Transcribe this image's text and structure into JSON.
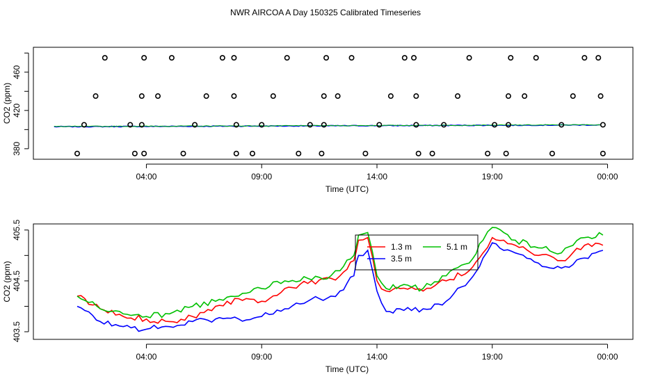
{
  "title": "NWR AIRCOA A  Day 150325  Calibrated Timeseries",
  "chart_data": [
    {
      "type": "scatter",
      "xlabel": "Time (UTC)",
      "ylabel": "CO2 (ppm)",
      "x_tick_labels": [
        "04:00",
        "09:00",
        "14:00",
        "19:00",
        "00:00"
      ],
      "x_tick_hours": [
        4,
        9,
        14,
        19,
        24
      ],
      "xlim_hours": [
        -0.9,
        25.1
      ],
      "y_ticks": [
        380,
        420,
        460
      ],
      "ylim": [
        369,
        486
      ],
      "calibration_levels": [
        375,
        405,
        435,
        475
      ],
      "series": [
        {
          "color": "#0000ff",
          "y_start": 403.0,
          "y_end": 404.9
        },
        {
          "color": "#00c000",
          "y_start": 403.2,
          "y_end": 405.0
        }
      ],
      "points": [
        [
          1.0,
          375
        ],
        [
          1.3,
          405
        ],
        [
          1.8,
          435
        ],
        [
          2.2,
          475
        ],
        [
          3.3,
          405
        ],
        [
          3.5,
          375
        ],
        [
          3.8,
          405
        ],
        [
          3.8,
          435
        ],
        [
          3.9,
          375
        ],
        [
          3.9,
          475
        ],
        [
          4.5,
          435
        ],
        [
          5.1,
          475
        ],
        [
          5.6,
          375
        ],
        [
          6.1,
          405
        ],
        [
          6.6,
          435
        ],
        [
          7.3,
          475
        ],
        [
          7.8,
          475
        ],
        [
          7.8,
          435
        ],
        [
          7.9,
          405
        ],
        [
          7.9,
          375
        ],
        [
          8.6,
          375
        ],
        [
          9.0,
          405
        ],
        [
          9.5,
          435
        ],
        [
          10.1,
          475
        ],
        [
          10.6,
          375
        ],
        [
          11.1,
          405
        ],
        [
          11.6,
          375
        ],
        [
          11.7,
          405
        ],
        [
          11.7,
          435
        ],
        [
          11.8,
          475
        ],
        [
          12.3,
          435
        ],
        [
          12.9,
          475
        ],
        [
          13.5,
          375
        ],
        [
          14.1,
          405
        ],
        [
          14.6,
          435
        ],
        [
          15.2,
          475
        ],
        [
          15.6,
          475
        ],
        [
          15.7,
          435
        ],
        [
          15.7,
          405
        ],
        [
          15.8,
          375
        ],
        [
          16.4,
          375
        ],
        [
          16.9,
          405
        ],
        [
          17.5,
          435
        ],
        [
          18.0,
          475
        ],
        [
          18.8,
          375
        ],
        [
          19.1,
          405
        ],
        [
          19.6,
          375
        ],
        [
          19.7,
          405
        ],
        [
          19.7,
          435
        ],
        [
          19.8,
          475
        ],
        [
          20.4,
          435
        ],
        [
          20.9,
          475
        ],
        [
          21.6,
          375
        ],
        [
          22.0,
          405
        ],
        [
          22.5,
          435
        ],
        [
          23.0,
          475
        ],
        [
          23.6,
          475
        ],
        [
          23.7,
          435
        ],
        [
          23.8,
          405
        ],
        [
          23.8,
          375
        ]
      ]
    },
    {
      "type": "line",
      "xlabel": "Time (UTC)",
      "ylabel": "CO2 (ppm)",
      "x_tick_labels": [
        "04:00",
        "09:00",
        "14:00",
        "19:00",
        "00:00"
      ],
      "x_tick_hours": [
        4,
        9,
        14,
        19,
        24
      ],
      "xlim_hours": [
        -0.9,
        25.1
      ],
      "y_ticks": [
        403.5,
        404.5,
        405.5
      ],
      "y_tick_labels": [
        "403.5",
        "404.5",
        "405.5"
      ],
      "ylim": [
        403.35,
        405.62
      ],
      "legend": {
        "position": "top-center",
        "entries": [
          "1.3 m",
          "3.5 m",
          "5.1 m"
        ]
      },
      "series": [
        {
          "name": "1.3 m",
          "color": "#ff0000",
          "x": [
            1,
            2,
            3,
            4,
            5,
            6,
            7,
            8,
            9,
            10,
            11,
            12,
            12.4,
            13,
            13.2,
            13.6,
            14,
            14.4,
            15,
            16,
            17,
            18,
            18.6,
            19,
            19.5,
            20,
            21,
            22,
            23,
            23.8
          ],
          "y": [
            404.2,
            403.95,
            403.8,
            403.75,
            403.7,
            403.8,
            404.0,
            404.15,
            404.1,
            404.35,
            404.45,
            404.55,
            404.6,
            404.9,
            405.3,
            405.35,
            404.5,
            404.3,
            404.35,
            404.3,
            404.5,
            404.7,
            405.05,
            405.35,
            405.3,
            405.2,
            405.0,
            404.9,
            405.2,
            405.2
          ]
        },
        {
          "name": "3.5 m",
          "color": "#0000ff",
          "x": [
            1,
            2,
            3,
            4,
            5,
            6,
            7,
            8,
            9,
            10,
            11,
            12,
            12.4,
            13,
            13.2,
            13.6,
            14,
            14.4,
            15,
            16,
            17,
            18,
            18.6,
            19,
            19.5,
            20,
            21,
            22,
            23,
            23.8
          ],
          "y": [
            404.0,
            403.7,
            403.6,
            403.55,
            403.6,
            403.7,
            403.75,
            403.75,
            403.8,
            403.95,
            404.1,
            404.2,
            404.3,
            404.6,
            405.0,
            405.1,
            404.3,
            403.9,
            403.95,
            403.95,
            404.1,
            404.5,
            404.95,
            405.25,
            405.1,
            405.05,
            404.85,
            404.75,
            404.95,
            405.1
          ]
        },
        {
          "name": "5.1 m",
          "color": "#00c000",
          "x": [
            1,
            2,
            3,
            4,
            5,
            6,
            7,
            8,
            9,
            10,
            11,
            12,
            12.4,
            13,
            13.2,
            13.6,
            14,
            14.4,
            15,
            16,
            17,
            18,
            18.6,
            19,
            19.5,
            20,
            21,
            22,
            23,
            23.8
          ],
          "y": [
            404.2,
            403.95,
            403.85,
            403.8,
            403.85,
            404.0,
            404.1,
            404.2,
            404.35,
            404.5,
            404.55,
            404.6,
            404.7,
            405.0,
            405.4,
            405.45,
            404.6,
            404.35,
            404.4,
            404.35,
            404.6,
            404.85,
            405.3,
            405.55,
            405.45,
            405.3,
            405.15,
            405.05,
            405.35,
            405.4
          ]
        }
      ]
    }
  ]
}
